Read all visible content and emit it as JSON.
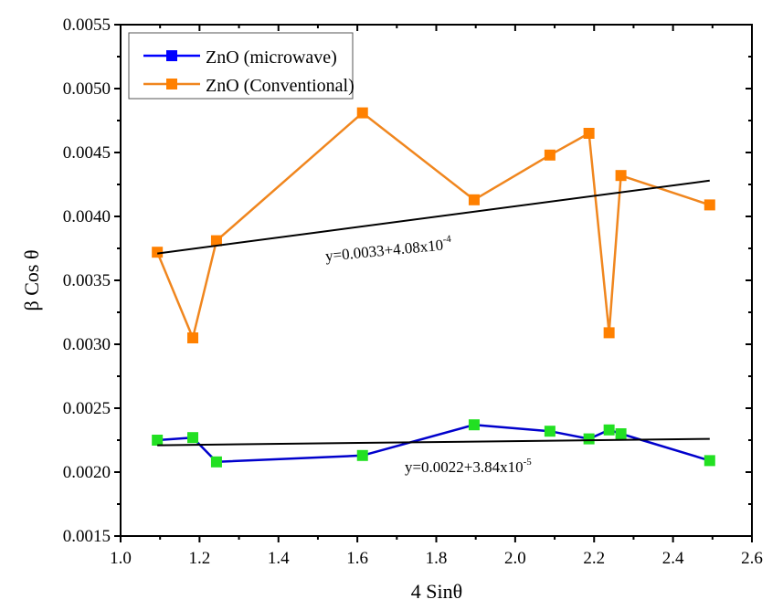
{
  "chart_data": {
    "type": "line",
    "title": "",
    "xlabel": "4 Sinθ",
    "ylabel": "β Cos θ",
    "xlim": [
      1.0,
      2.6
    ],
    "ylim": [
      0.0015,
      0.0055
    ],
    "xticks": [
      1.0,
      1.2,
      1.4,
      1.6,
      1.8,
      2.0,
      2.2,
      2.4,
      2.6
    ],
    "xtick_labels": [
      "1.0",
      "1.2",
      "1.4",
      "1.6",
      "1.8",
      "2.0",
      "2.2",
      "2.4",
      "2.6"
    ],
    "yticks": [
      0.0015,
      0.002,
      0.0025,
      0.003,
      0.0035,
      0.004,
      0.0045,
      0.005,
      0.0055
    ],
    "ytick_labels": [
      "0.0015",
      "0.0020",
      "0.0025",
      "0.0030",
      "0.0035",
      "0.0040",
      "0.0045",
      "0.0050",
      "0.0055"
    ],
    "grid": false,
    "legend_position": "top-left",
    "series": [
      {
        "name": "ZnO (microwave)",
        "line_color": "#0000cc",
        "marker_color": "#22e022",
        "legend_marker_color": "#0000ff",
        "marker": "square",
        "x": [
          1.093,
          1.183,
          1.243,
          1.613,
          1.896,
          2.088,
          2.187,
          2.238,
          2.268,
          2.493
        ],
        "y": [
          0.00225,
          0.00227,
          0.00208,
          0.00213,
          0.00237,
          0.00232,
          0.00226,
          0.00233,
          0.0023,
          0.00209
        ]
      },
      {
        "name": "ZnO (Conventional)",
        "line_color": "#f0861e",
        "marker_color": "#ff8000",
        "legend_marker_color": "#ff8000",
        "marker": "square",
        "x": [
          1.093,
          1.183,
          1.243,
          1.613,
          1.896,
          2.088,
          2.187,
          2.238,
          2.268,
          2.493
        ],
        "y": [
          0.00372,
          0.00305,
          0.00381,
          0.00481,
          0.00413,
          0.00448,
          0.00465,
          0.00309,
          0.00432,
          0.00409
        ]
      }
    ],
    "fit_lines": [
      {
        "name": "fit-conventional",
        "color": "#000000",
        "x": [
          1.093,
          2.493
        ],
        "y": [
          0.00371,
          0.00428
        ],
        "label": "y=0.0033+4.08x10",
        "label_exponent": "-4",
        "label_anchor": [
          1.52,
          0.00365
        ],
        "label_angle_deg": -5.5
      },
      {
        "name": "fit-microwave",
        "color": "#000000",
        "x": [
          1.093,
          2.493
        ],
        "y": [
          0.00221,
          0.00226
        ],
        "label": "y=0.0022+3.84x10",
        "label_exponent": "-5",
        "label_anchor": [
          1.72,
          0.002
        ],
        "label_angle_deg": 0
      }
    ]
  }
}
